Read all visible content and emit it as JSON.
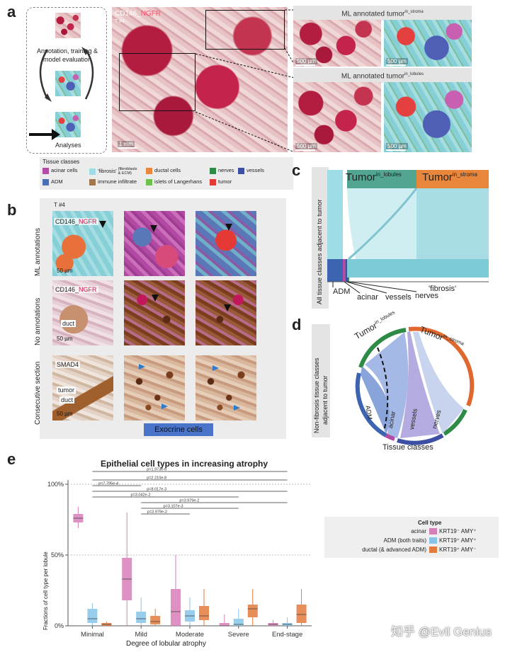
{
  "panels": {
    "a": "a",
    "b": "b",
    "c": "c",
    "d": "d",
    "e": "e"
  },
  "panel_a": {
    "cycle_text": "Annotation, training & model evaluation",
    "analyses": "Analyses",
    "stain_prefix": "CD146_",
    "stain_suffix": "NGFR",
    "sample_id": "T #4",
    "scale_main": "1 mm",
    "inset_scale": "500 µm",
    "stroma_title": "ML annotated tumor",
    "stroma_sup": "in_stroma",
    "lobules_title": "ML annotated tumor",
    "lobules_sup": "in_lobules"
  },
  "legend": {
    "title": "Tissue classes",
    "items": [
      {
        "label": "acinar cells",
        "color": "#b44ba5"
      },
      {
        "label": "'fibrosis'",
        "sub": "(fibroblasts & ECM)",
        "color": "#9fdde6"
      },
      {
        "label": "ductal cells",
        "color": "#e8873b"
      },
      {
        "label": "nerves",
        "color": "#2e8b45"
      },
      {
        "label": "vessels",
        "color": "#3c4fa3"
      },
      {
        "label": "ADM",
        "color": "#4a6fb5"
      },
      {
        "label": "immune infiltrate",
        "color": "#a0764a"
      },
      {
        "label": "islets of Langerhans",
        "color": "#6cc24a"
      },
      {
        "label": "tumor",
        "color": "#e53935"
      }
    ]
  },
  "panel_b": {
    "sample_id": "T #4",
    "row1_label": "ML annotations",
    "row2_label": "No annotations",
    "row3_label": "Consecutive section",
    "stain_prefix": "CD146_",
    "stain_suffix": "NGFR",
    "smad4": "SMAD4",
    "duct": "duct",
    "tumor": "tumor",
    "scale": "50 µm",
    "footer": "Exocrine cells"
  },
  "panel_c": {
    "y_label": "All tissue classes adjacent to tumor",
    "lobules_main": "Tumor",
    "lobules_sup": "in_lobules",
    "stroma_main": "Tumor",
    "stroma_sup": "in_stroma",
    "labels": [
      "ADM",
      "acinar",
      "vessels",
      "nerves",
      "'fibrosis'"
    ]
  },
  "panel_d": {
    "y_label_1": "Non-fibrosis tissue classes",
    "y_label_2": "adjacent to tumor",
    "lobules_main": "Tumor",
    "lobules_sup": "in_lobules",
    "stroma_main": "Tumor",
    "stroma_sup": "in_stroma",
    "arcs": [
      "ADM",
      "acinar",
      "vessels",
      "nerves"
    ],
    "footer": "Tissue classes"
  },
  "chart_data": {
    "type": "box",
    "title": "Epithelial cell types in increasing atrophy",
    "xlabel": "Degree of lobular atrophy",
    "ylabel": "Fractions of cell type per lobule",
    "categories": [
      "Minimal",
      "Mild",
      "Moderate",
      "Severe",
      "End-stage"
    ],
    "ylim": [
      0,
      100
    ],
    "y_ticks": [
      "0%",
      "50%",
      "100%"
    ],
    "legend_title": "Cell type",
    "series": [
      {
        "name": "acinar",
        "marker": "KRT19⁻ AMY⁺",
        "color": "#d77fb8",
        "boxes": [
          [
            69,
            73,
            76,
            79,
            84
          ],
          [
            0,
            18,
            33,
            48,
            80
          ],
          [
            0,
            0,
            10,
            26,
            50
          ],
          [
            0,
            0,
            0,
            2,
            8
          ],
          [
            0,
            0,
            1,
            2,
            4
          ]
        ]
      },
      {
        "name": "ADM (both traits)",
        "marker": "KRT19⁺ AMY⁺",
        "color": "#86c5e8",
        "boxes": [
          [
            0,
            2,
            5,
            12,
            16
          ],
          [
            0,
            2,
            5,
            10,
            20
          ],
          [
            0,
            3,
            7,
            11,
            20
          ],
          [
            0,
            0,
            1,
            5,
            12
          ],
          [
            0,
            0,
            1,
            2,
            6
          ]
        ]
      },
      {
        "name": "ductal (& advanced ADM)",
        "marker": "KRT19⁺ AMY⁻",
        "color": "#e47a3c",
        "boxes": [
          [
            0,
            0,
            1,
            2,
            3
          ],
          [
            0,
            1,
            3,
            7,
            12
          ],
          [
            0,
            4,
            7,
            14,
            26
          ],
          [
            0,
            6,
            12,
            15,
            26
          ],
          [
            0,
            2,
            8,
            15,
            26
          ]
        ]
      }
    ],
    "pvalues": [
      "p=1.973e-6",
      "p=2.210e-8",
      "p=7.795e-4",
      "p=8.017e-3",
      "p=3.042e-2",
      "p=3.979e-2",
      "p=3.107e-3",
      "p=3.979e-2"
    ]
  },
  "watermark": "知乎 @Evil Genius"
}
